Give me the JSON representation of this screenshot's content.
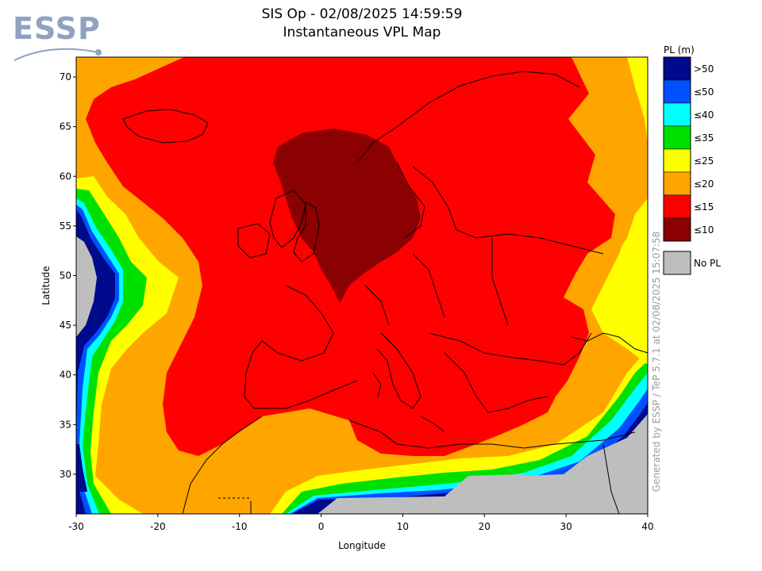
{
  "logo": {
    "text": "ESSP"
  },
  "title": {
    "line1": "SIS Op - 02/08/2025 14:59:59",
    "line2": "Instantaneous VPL Map"
  },
  "credit": "Generated by ESSP / TeP 5.7.1 at 02/08/2025 15:07:58",
  "colors": {
    "very_dark_red": "#8b0000",
    "red": "#ff0000",
    "orange": "#ffa500",
    "yellow": "#ffff00",
    "green": "#00e000",
    "cyan": "#00ffff",
    "blue": "#0050ff",
    "navy": "#000a8c",
    "gray": "#bebebe",
    "coast": "#000000"
  },
  "chart_data": {
    "type": "heatmap",
    "title": "SIS Op - 02/08/2025 14:59:59",
    "subtitle": "Instantaneous VPL Map",
    "xlabel": "Longitude",
    "ylabel": "Latitude",
    "xlim": [
      -30,
      40
    ],
    "ylim": [
      26,
      72
    ],
    "xticks": [
      -30,
      -20,
      -10,
      0,
      10,
      20,
      30,
      40
    ],
    "yticks": [
      30,
      35,
      40,
      45,
      50,
      55,
      60,
      65,
      70
    ],
    "legend": {
      "title": "PL (m)",
      "entries": [
        {
          "label": ">50",
          "color": "#000a8c"
        },
        {
          "label": "≤50",
          "color": "#0050ff"
        },
        {
          "label": "≤40",
          "color": "#00ffff"
        },
        {
          "label": "≤35",
          "color": "#00e000"
        },
        {
          "label": "≤25",
          "color": "#ffff00"
        },
        {
          "label": "≤20",
          "color": "#ffa500"
        },
        {
          "label": "≤15",
          "color": "#ff0000"
        },
        {
          "label": "≤10",
          "color": "#8b0000"
        }
      ],
      "nopl": {
        "label": "No PL",
        "color": "#bebebe"
      }
    }
  }
}
